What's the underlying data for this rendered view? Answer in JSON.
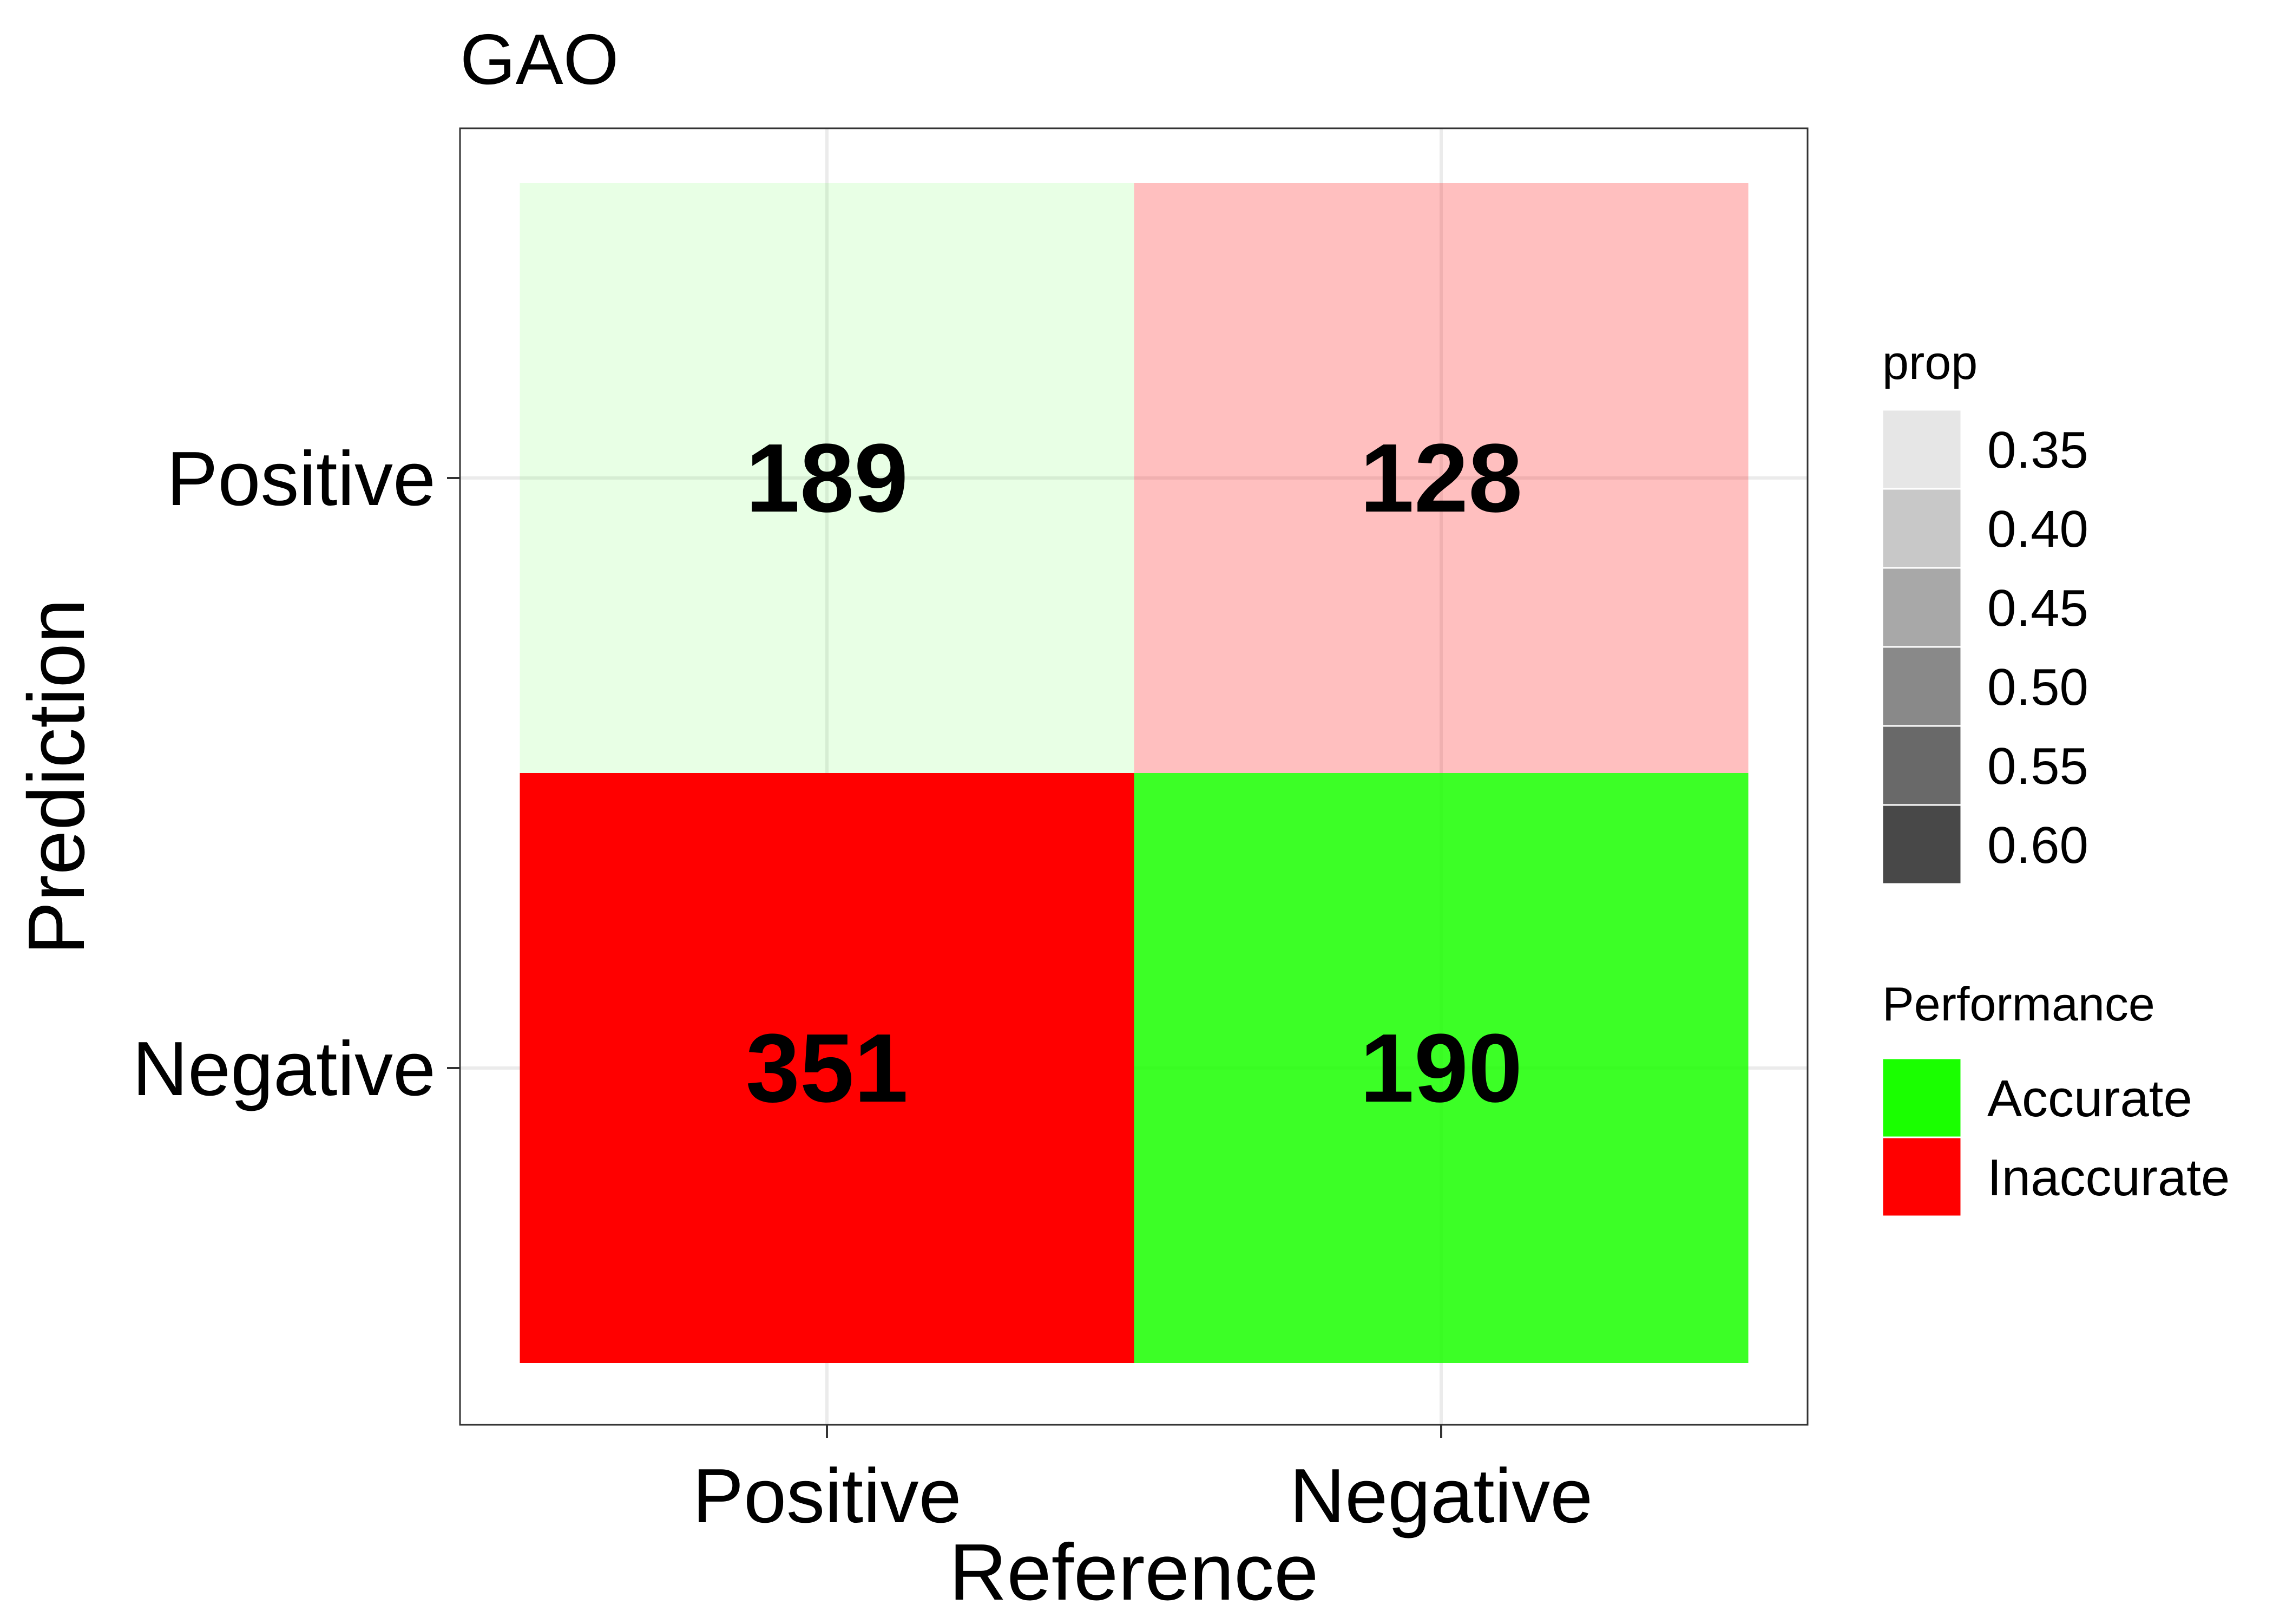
{
  "chart_data": {
    "type": "heatmap",
    "title": "GAO",
    "xlabel": "Reference",
    "ylabel": "Prediction",
    "x_categories": [
      "Positive",
      "Negative"
    ],
    "y_categories": [
      "Positive",
      "Negative"
    ],
    "cells": [
      {
        "reference": "Positive",
        "prediction": "Positive",
        "count": "189",
        "performance": "Accurate",
        "prop": 0.35
      },
      {
        "reference": "Negative",
        "prediction": "Positive",
        "count": "128",
        "performance": "Inaccurate",
        "prop": 0.4
      },
      {
        "reference": "Positive",
        "prediction": "Negative",
        "count": "351",
        "performance": "Inaccurate",
        "prop": 0.65
      },
      {
        "reference": "Negative",
        "prediction": "Negative",
        "count": "190",
        "performance": "Accurate",
        "prop": 0.6
      }
    ],
    "legends": {
      "prop": {
        "title": "prop",
        "breaks": [
          "0.35",
          "0.40",
          "0.45",
          "0.50",
          "0.55",
          "0.60"
        ],
        "colors": [
          "#e6e6e6",
          "#c8c8c8",
          "#a8a8a8",
          "#898989",
          "#696969",
          "#484848"
        ]
      },
      "performance": {
        "title": "Performance",
        "items": [
          {
            "label": "Accurate",
            "color": "#1aff00"
          },
          {
            "label": "Inaccurate",
            "color": "#ff0000"
          }
        ]
      }
    },
    "colors": {
      "Accurate": "#1aff00",
      "Inaccurate": "#ff0000"
    },
    "grid": true,
    "legend_position": "right"
  }
}
